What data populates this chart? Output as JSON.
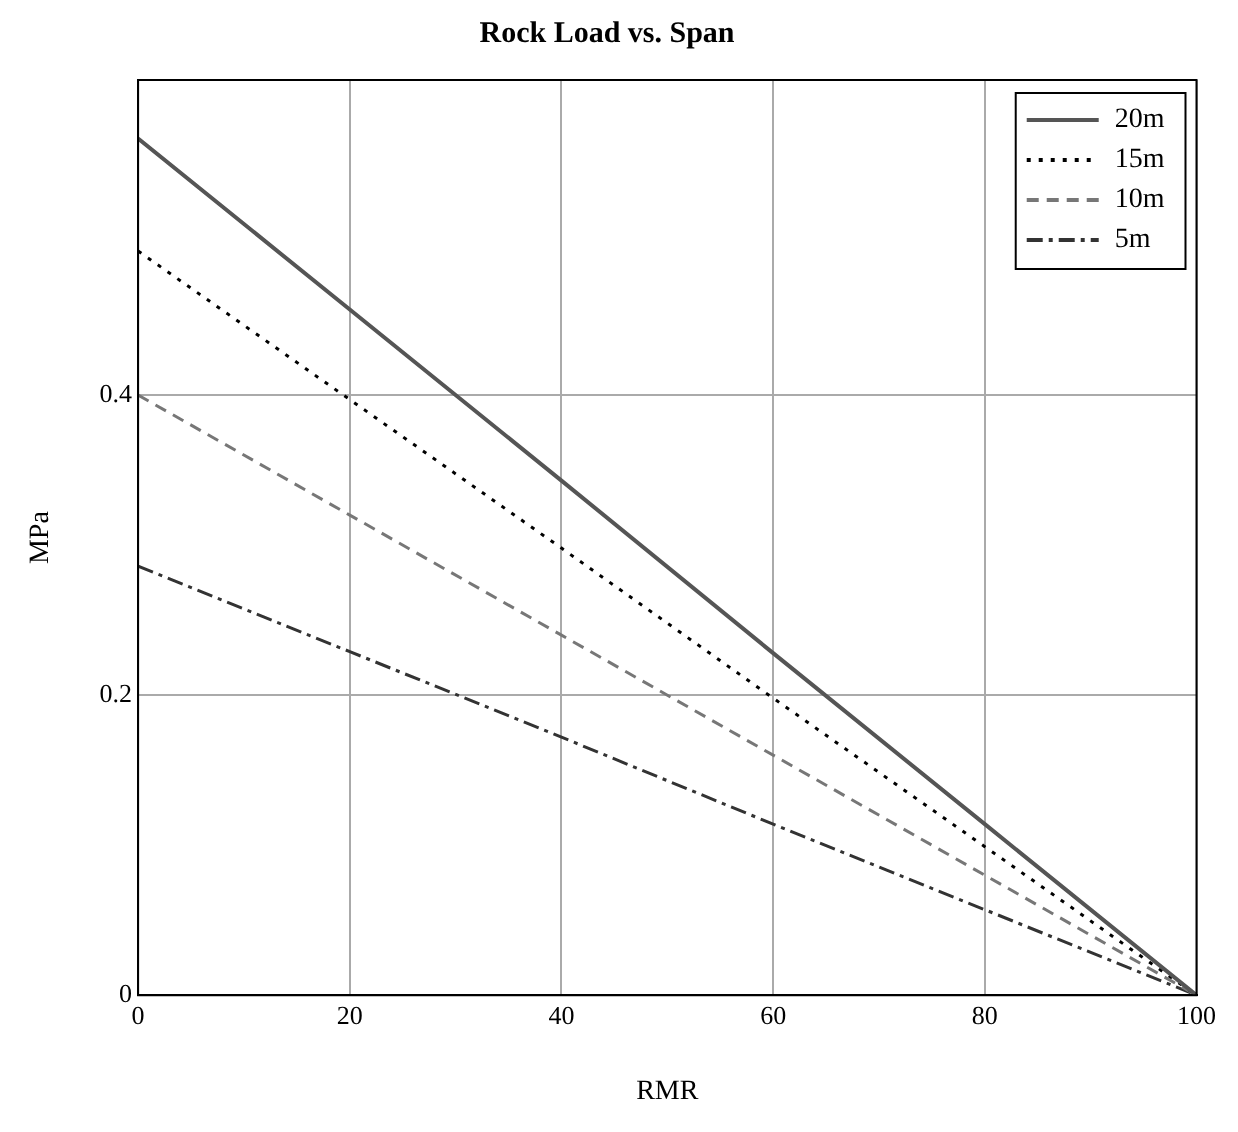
{
  "chart_data": {
    "type": "line",
    "title": "Rock Load vs. Span",
    "xlabel": "RMR",
    "ylabel": "MPa",
    "x": [
      0,
      20,
      40,
      60,
      80,
      100
    ],
    "series": [
      {
        "name": "20m",
        "color": "#555555",
        "line_style": "solid",
        "values": [
          0.571,
          0.457,
          0.343,
          0.228,
          0.114,
          0
        ]
      },
      {
        "name": "15m",
        "color": "#000000",
        "line_style": "dotted",
        "values": [
          0.496,
          0.397,
          0.298,
          0.198,
          0.099,
          0
        ]
      },
      {
        "name": "10m",
        "color": "#777777",
        "line_style": "dashed",
        "values": [
          0.4,
          0.32,
          0.24,
          0.16,
          0.08,
          0
        ]
      },
      {
        "name": "5m",
        "color": "#333333",
        "line_style": "dashdot",
        "values": [
          0.286,
          0.229,
          0.172,
          0.114,
          0.057,
          0
        ]
      }
    ],
    "xlim": [
      0,
      100
    ],
    "xticks": [
      0,
      20,
      40,
      60,
      80,
      100
    ],
    "ylim": [
      0,
      0.61
    ],
    "yticks": [
      0,
      0.2,
      0.4
    ],
    "grid": true,
    "legend": "top right",
    "marker": "none"
  }
}
